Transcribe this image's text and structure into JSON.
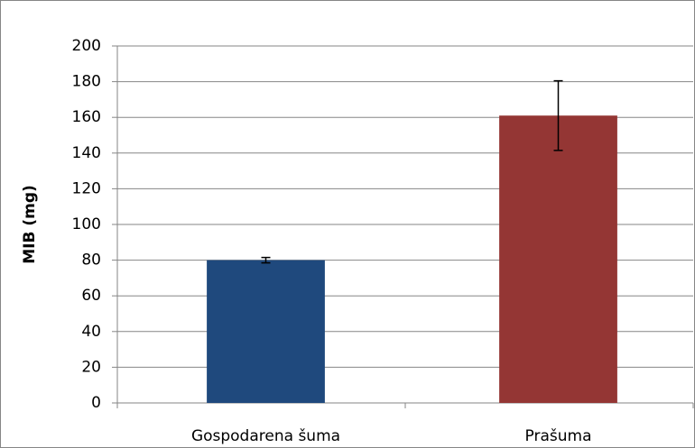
{
  "chart_data": {
    "type": "bar",
    "y_label": "MIB (mg)",
    "categories": [
      "Gospodarena šuma",
      "Prašuma"
    ],
    "values": [
      80,
      161
    ],
    "errors": [
      1.5,
      19.5
    ],
    "colors": [
      "#1f497d",
      "#943634"
    ],
    "ylim": [
      0,
      200
    ],
    "yticks": [
      0,
      20,
      40,
      60,
      80,
      100,
      120,
      140,
      160,
      180,
      200
    ],
    "grid": true
  }
}
